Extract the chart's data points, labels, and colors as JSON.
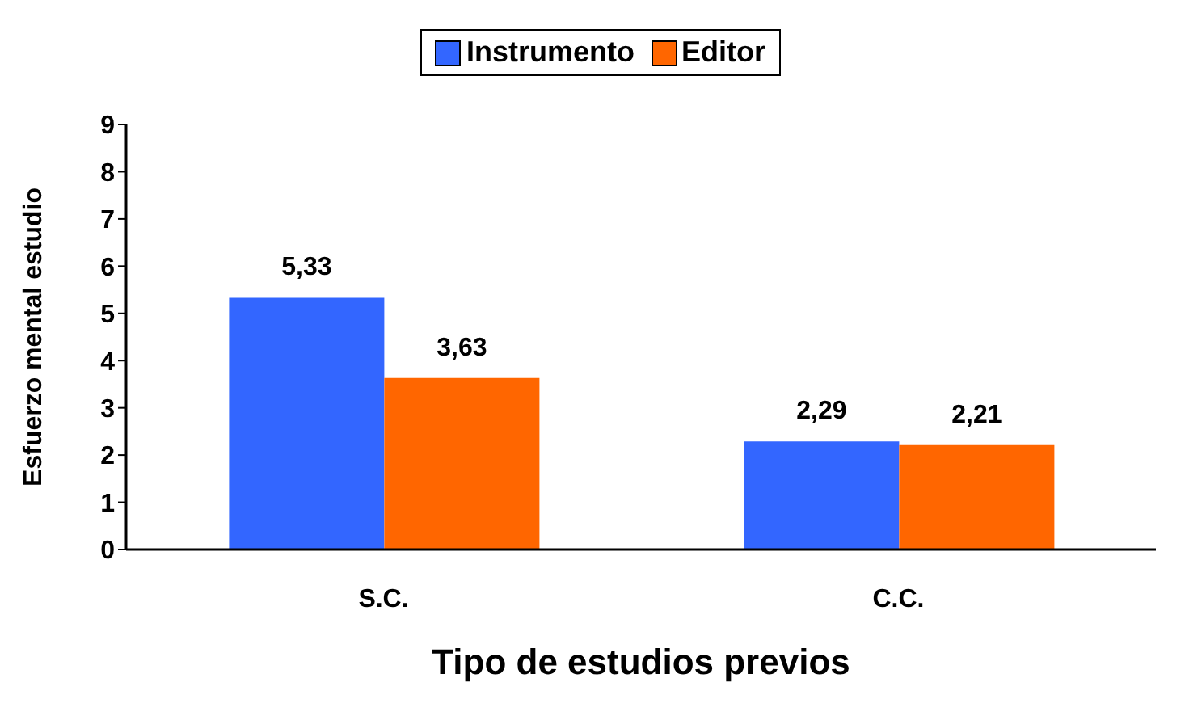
{
  "chart_data": {
    "type": "bar",
    "xlabel": "Tipo de estudios previos",
    "ylabel": "Esfuerzo mental estudio",
    "categories": [
      "S.C.",
      "C.C."
    ],
    "series": [
      {
        "name": "Instrumento",
        "color": "#3366ff",
        "values": [
          5.33,
          2.29
        ],
        "value_labels": [
          "5,33",
          "2,29"
        ]
      },
      {
        "name": "Editor",
        "color": "#ff6600",
        "values": [
          3.63,
          2.21
        ],
        "value_labels": [
          "3,63",
          "2,21"
        ]
      }
    ],
    "ylim": [
      0,
      9
    ],
    "yticks": [
      0,
      1,
      2,
      3,
      4,
      5,
      6,
      7,
      8,
      9
    ],
    "grid": false,
    "legend": "top"
  }
}
